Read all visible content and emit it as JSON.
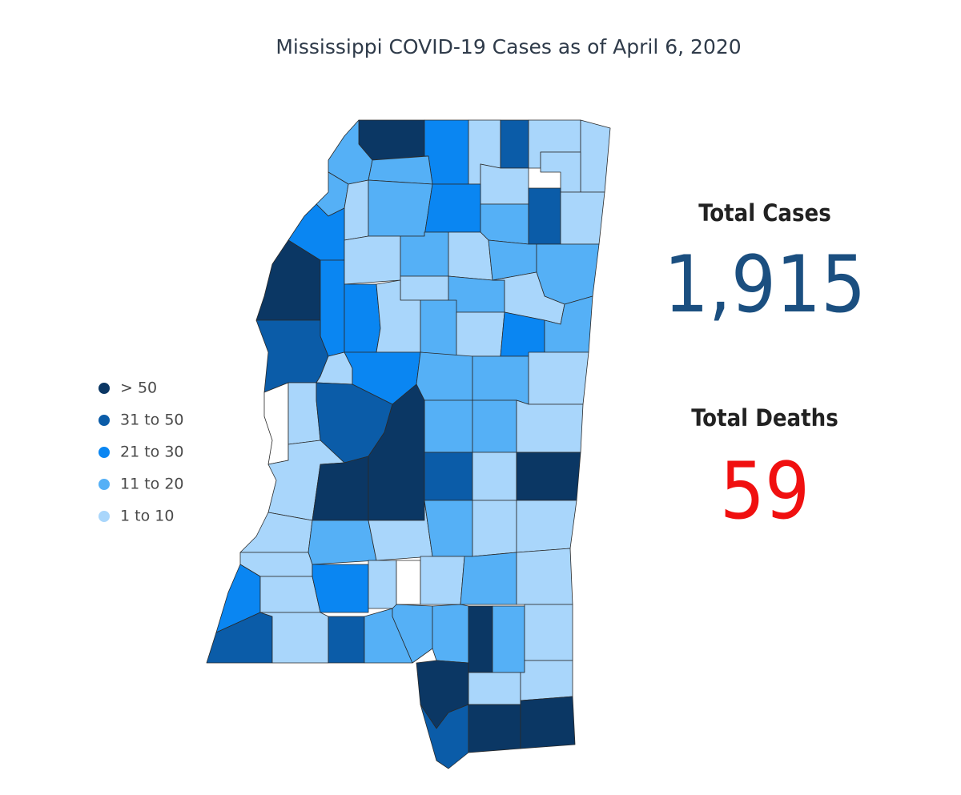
{
  "title": "Mississippi COVID-19 Cases as of April 6, 2020",
  "legend": {
    "items": [
      {
        "label": "> 50",
        "color": "#0b3764"
      },
      {
        "label": "31 to 50",
        "color": "#0b5ca8"
      },
      {
        "label": "21 to 30",
        "color": "#0a86f2"
      },
      {
        "label": "11 to 20",
        "color": "#55b0f6"
      },
      {
        "label": "1 to 10",
        "color": "#a9d6fb"
      }
    ]
  },
  "stats": {
    "cases": {
      "label": "Total Cases",
      "value": "1,915"
    },
    "deaths": {
      "label": "Total Deaths",
      "value": "59"
    }
  }
}
